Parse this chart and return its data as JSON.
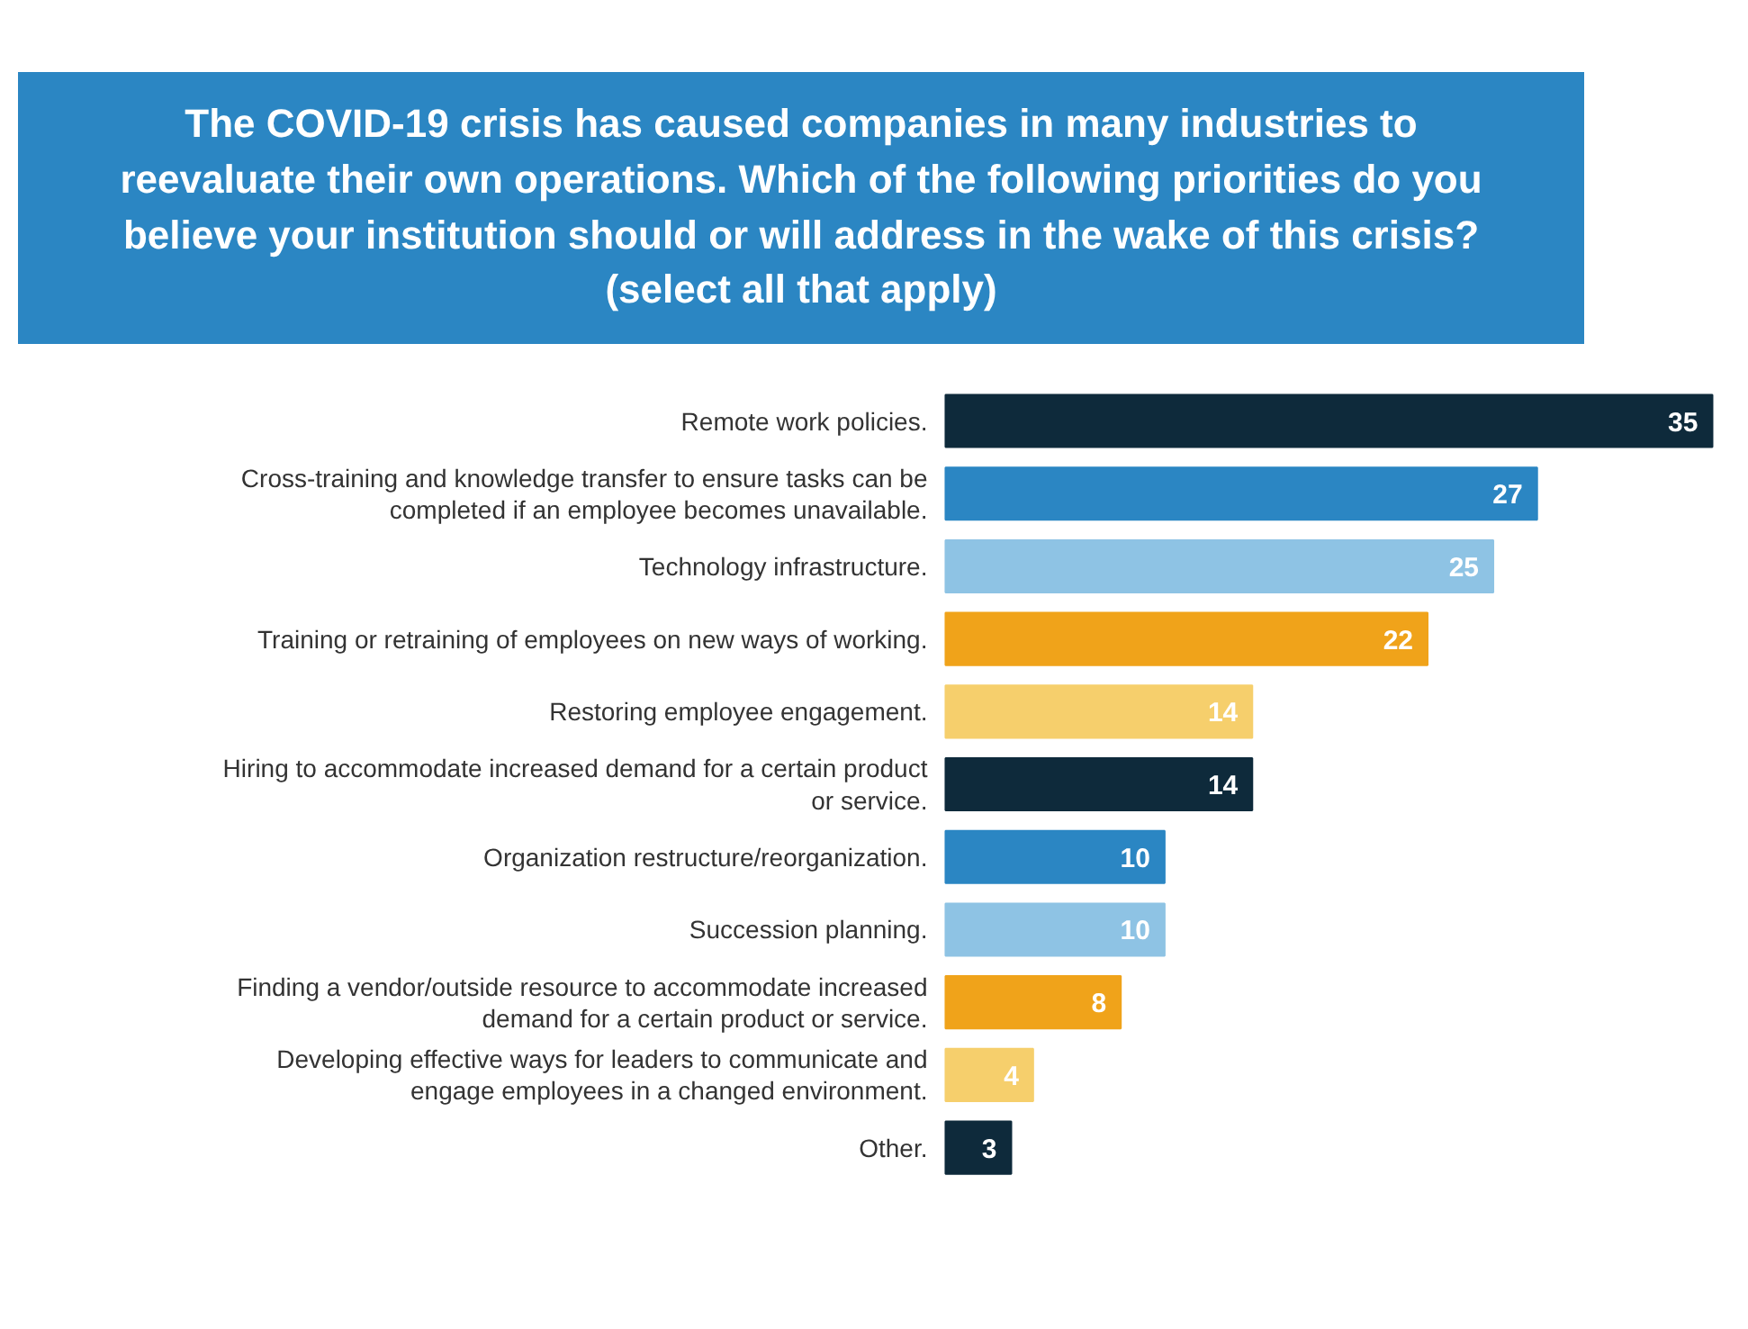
{
  "chart_data": {
    "type": "bar",
    "orientation": "horizontal",
    "title": "The COVID-19 crisis has caused companies in many industries to reevaluate their own operations. Which of the following priorities do you believe your institution should or will address in the wake of this crisis? (select all that apply)",
    "categories": [
      "Remote work policies.",
      "Cross-training and knowledge transfer to ensure tasks can be completed if an employee becomes unavailable.",
      "Technology infrastructure.",
      "Training or retraining of employees on new ways of working.",
      "Restoring employee engagement.",
      "Hiring to accommodate increased demand for a certain product or service.",
      "Organization restructure/reorganization.",
      "Succession planning.",
      "Finding a vendor/outside resource to accommodate increased demand for a certain product or service.",
      "Developing effective ways for leaders to communicate and engage employees in a changed environment.",
      "Other."
    ],
    "values": [
      35,
      27,
      25,
      22,
      14,
      14,
      10,
      10,
      8,
      4,
      3
    ],
    "colors": [
      "#0e2a3b",
      "#2b86c3",
      "#8ec3e4",
      "#f0a31a",
      "#f6cf6c",
      "#0e2a3b",
      "#2b86c3",
      "#8ec3e4",
      "#f0a31a",
      "#f6cf6c",
      "#0e2a3b"
    ],
    "data_labels": true,
    "grid": false
  }
}
